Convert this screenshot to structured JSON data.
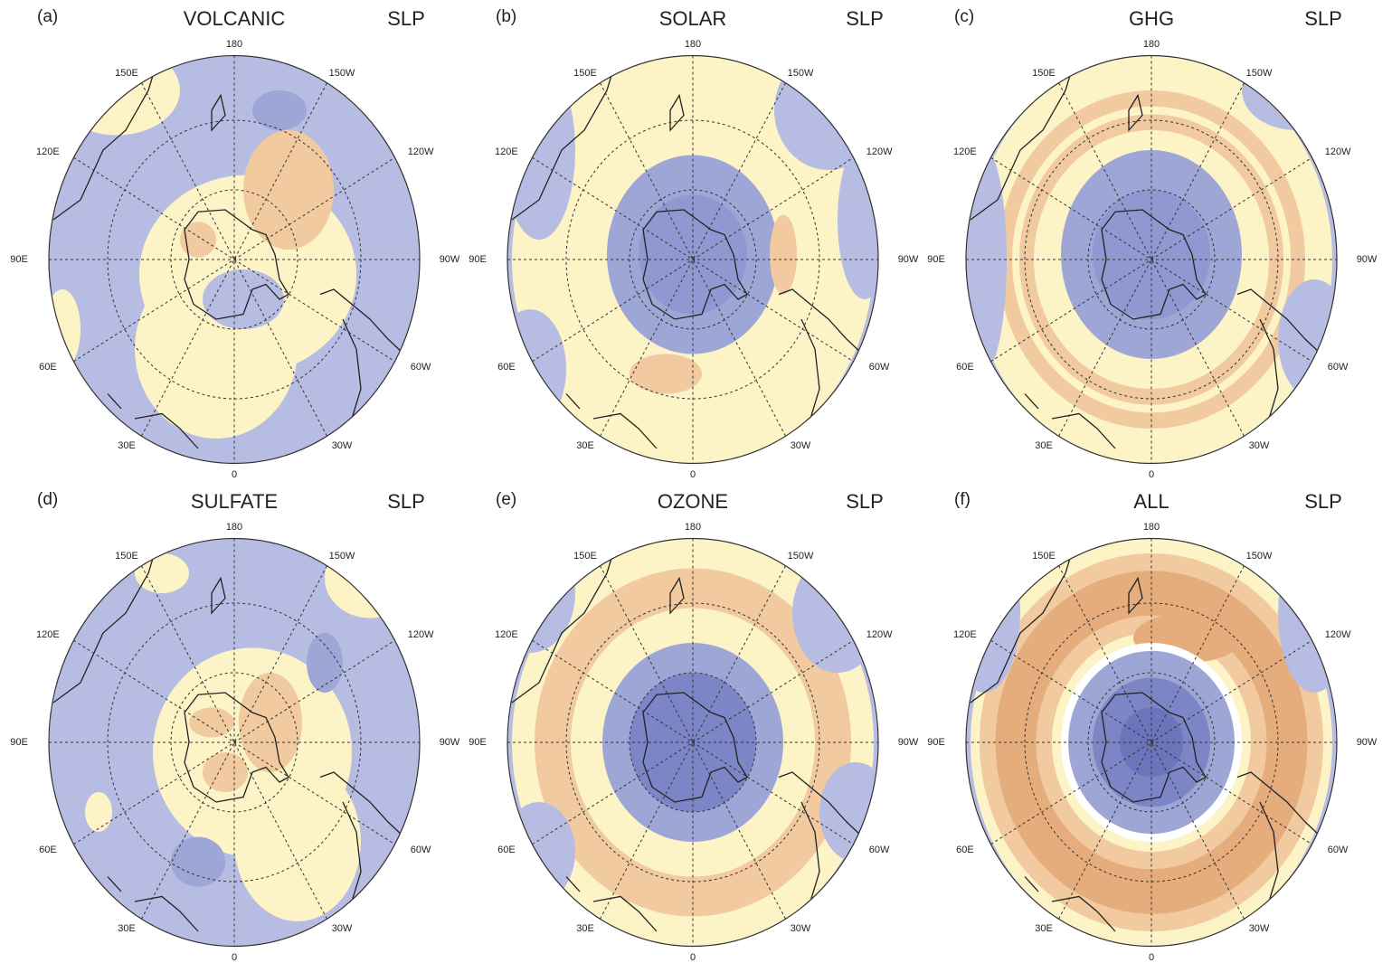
{
  "panels": [
    {
      "label": "(a)",
      "title": "VOLCANIC",
      "variable": "SLP"
    },
    {
      "label": "(b)",
      "title": "SOLAR",
      "variable": "SLP"
    },
    {
      "label": "(c)",
      "title": "GHG",
      "variable": "SLP"
    },
    {
      "label": "(d)",
      "title": "SULFATE",
      "variable": "SLP"
    },
    {
      "label": "(e)",
      "title": "OZONE",
      "variable": "SLP"
    },
    {
      "label": "(f)",
      "title": "ALL",
      "variable": "SLP"
    }
  ],
  "longitude_labels": [
    "180",
    "150W",
    "120W",
    "90W",
    "60W",
    "30W",
    "0",
    "30E",
    "60E",
    "90E",
    "120E",
    "150E"
  ]
}
